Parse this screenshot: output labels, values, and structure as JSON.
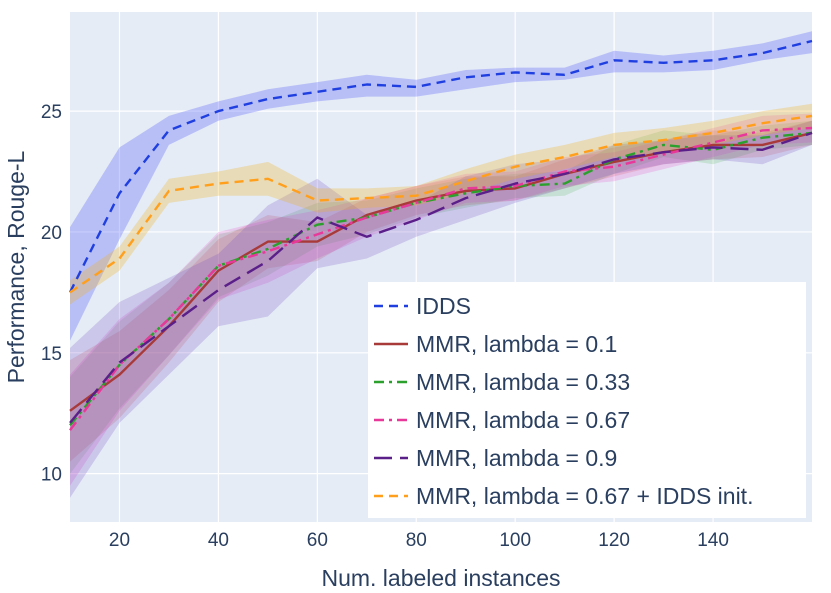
{
  "chart_data": {
    "type": "line",
    "title": "",
    "xlabel": "Num. labeled instances",
    "ylabel": "Performance, Rouge-L",
    "xlim": [
      10,
      160
    ],
    "ylim": [
      8,
      29.1
    ],
    "xticks": [
      20,
      40,
      60,
      80,
      100,
      120,
      140
    ],
    "yticks": [
      10,
      15,
      20,
      25
    ],
    "grid": true,
    "legend_position": "bottom-right",
    "x": [
      10,
      20,
      30,
      40,
      50,
      60,
      70,
      80,
      90,
      100,
      110,
      120,
      130,
      140,
      150,
      160
    ],
    "series": [
      {
        "name": "IDDS",
        "color": "#1f3fe0",
        "fill": "rgba(99,110,250,0.35)",
        "dash": "dash",
        "values": [
          17.5,
          21.6,
          24.2,
          25.0,
          25.5,
          25.8,
          26.1,
          26.0,
          26.4,
          26.6,
          26.5,
          27.1,
          27.0,
          27.1,
          27.4,
          27.9
        ],
        "lower": [
          15.5,
          19.7,
          23.6,
          24.6,
          25.1,
          25.4,
          25.6,
          25.6,
          25.9,
          26.2,
          26.3,
          26.6,
          26.6,
          26.7,
          27.1,
          27.4
        ],
        "upper": [
          20.2,
          23.5,
          24.8,
          25.4,
          25.9,
          26.2,
          26.5,
          26.3,
          26.7,
          26.8,
          26.8,
          27.5,
          27.3,
          27.5,
          27.8,
          28.3
        ]
      },
      {
        "name": "MMR, lambda = 0.1",
        "color": "#a83a3a",
        "fill": "rgba(214,39,40,0.16)",
        "dash": "solid",
        "values": [
          12.6,
          14.1,
          16.1,
          18.4,
          19.6,
          19.6,
          20.7,
          21.3,
          21.7,
          21.8,
          22.4,
          22.9,
          23.3,
          23.6,
          23.6,
          24.1
        ],
        "lower": [
          10.5,
          12.3,
          14.6,
          17.1,
          18.5,
          18.8,
          20.0,
          20.7,
          21.1,
          21.3,
          21.8,
          22.3,
          22.8,
          23.0,
          23.1,
          23.6
        ],
        "upper": [
          14.7,
          15.9,
          17.6,
          19.7,
          20.7,
          20.4,
          21.4,
          21.9,
          22.3,
          22.3,
          23.0,
          23.5,
          23.8,
          24.2,
          24.1,
          24.6
        ]
      },
      {
        "name": "MMR, lambda = 0.33",
        "color": "#2ca02c",
        "fill": "rgba(44,160,44,0.16)",
        "dash": "dashdot",
        "values": [
          12.0,
          14.5,
          16.4,
          18.6,
          19.3,
          20.3,
          20.6,
          21.2,
          21.6,
          21.9,
          22.0,
          23.0,
          23.6,
          23.4,
          23.9,
          24.1
        ],
        "lower": [
          10.0,
          12.7,
          14.9,
          17.3,
          18.2,
          19.4,
          19.9,
          20.6,
          21.0,
          21.4,
          21.5,
          22.4,
          23.1,
          22.8,
          23.4,
          23.6
        ],
        "upper": [
          14.0,
          16.3,
          17.9,
          19.9,
          20.4,
          21.2,
          21.3,
          21.8,
          22.2,
          22.4,
          22.5,
          23.6,
          24.2,
          24.0,
          24.4,
          24.6
        ]
      },
      {
        "name": "MMR, lambda = 0.67",
        "color": "#e8389a",
        "fill": "rgba(230,60,200,0.20)",
        "dash": "dashdot",
        "values": [
          11.8,
          14.5,
          16.4,
          18.6,
          19.2,
          19.9,
          20.6,
          21.2,
          21.8,
          21.9,
          22.5,
          22.7,
          23.2,
          23.7,
          24.2,
          24.3
        ],
        "lower": [
          9.5,
          12.6,
          14.9,
          17.2,
          17.9,
          18.9,
          19.8,
          20.5,
          21.2,
          21.3,
          21.9,
          22.1,
          22.6,
          23.1,
          23.6,
          23.7
        ],
        "upper": [
          14.1,
          16.4,
          17.9,
          20.0,
          20.5,
          20.9,
          21.4,
          21.9,
          22.4,
          22.5,
          23.1,
          23.3,
          23.8,
          24.3,
          24.8,
          24.9
        ]
      },
      {
        "name": "MMR, lambda = 0.9",
        "color": "#5b1f8a",
        "fill": "rgba(110,70,190,0.22)",
        "dash": "longdash",
        "values": [
          12.1,
          14.6,
          16.1,
          17.6,
          18.8,
          20.6,
          19.8,
          20.5,
          21.4,
          22.0,
          22.4,
          23.0,
          23.3,
          23.5,
          23.4,
          24.1
        ],
        "lower": [
          9.0,
          12.1,
          14.1,
          16.1,
          16.5,
          18.5,
          18.9,
          19.8,
          20.5,
          21.2,
          21.8,
          22.4,
          22.8,
          23.0,
          22.8,
          23.6
        ],
        "upper": [
          15.2,
          17.1,
          18.1,
          19.1,
          21.1,
          22.2,
          20.7,
          21.2,
          22.3,
          22.8,
          23.0,
          23.6,
          23.8,
          24.0,
          24.0,
          24.6
        ]
      },
      {
        "name": "MMR, lambda = 0.67 + IDDS init.",
        "color": "#ff9f1c",
        "fill": "rgba(240,180,40,0.30)",
        "dash": "dash",
        "values": [
          17.5,
          18.9,
          21.7,
          22.0,
          22.2,
          21.3,
          21.4,
          21.5,
          22.1,
          22.7,
          23.1,
          23.6,
          23.8,
          24.1,
          24.5,
          24.8
        ],
        "lower": [
          17.0,
          18.4,
          21.2,
          21.5,
          21.5,
          20.8,
          21.0,
          21.1,
          21.6,
          22.2,
          22.6,
          23.1,
          23.3,
          23.6,
          24.0,
          24.3
        ],
        "upper": [
          18.0,
          19.4,
          22.2,
          22.5,
          22.9,
          21.8,
          21.8,
          21.9,
          22.6,
          23.2,
          23.6,
          24.1,
          24.3,
          24.6,
          25.0,
          25.3
        ]
      }
    ]
  }
}
